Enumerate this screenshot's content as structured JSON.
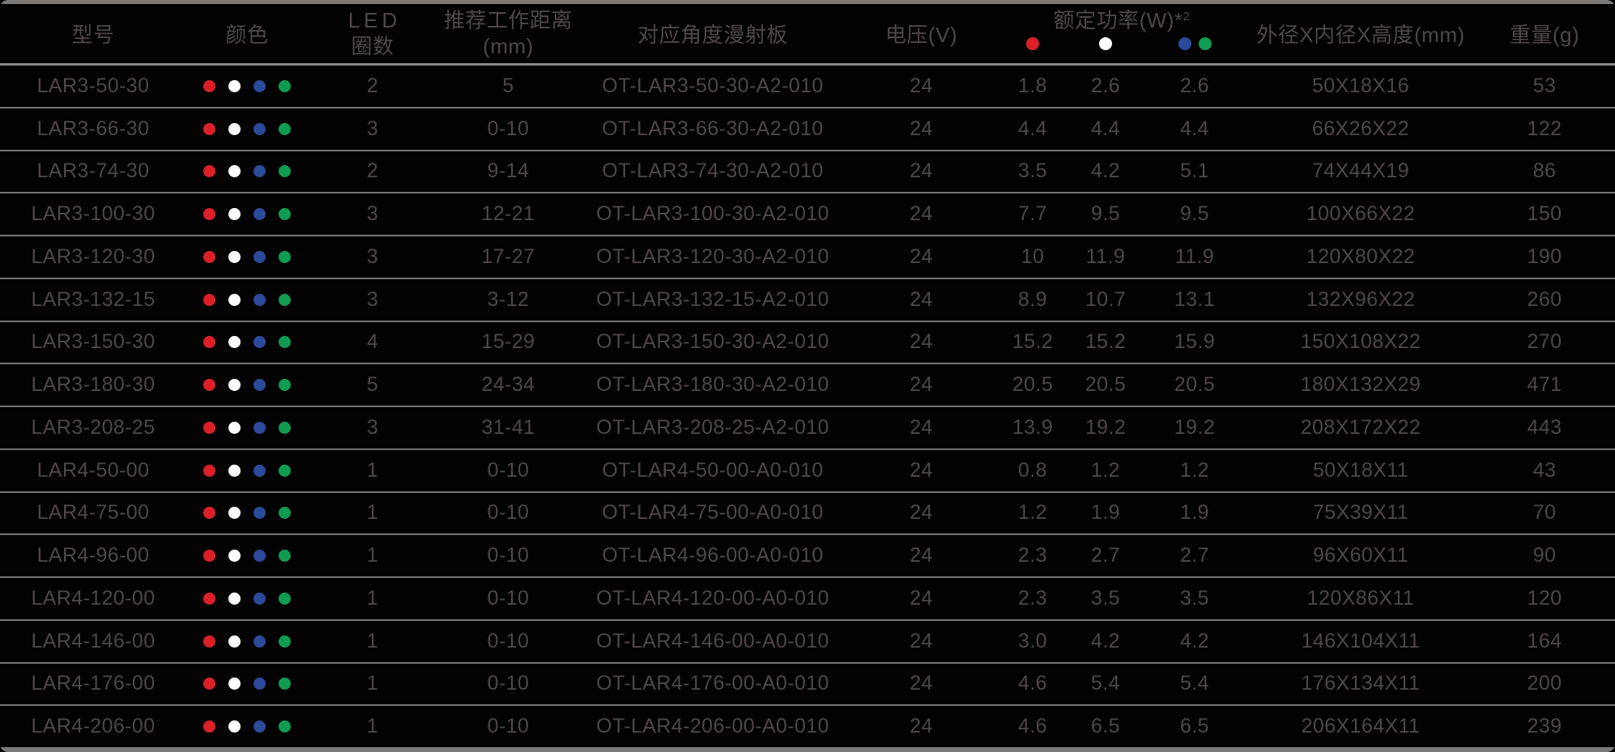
{
  "colors": {
    "background": "#020202",
    "text": "#4e4649",
    "separator_line": "#767272",
    "frame_bar": "#7a7777",
    "dots": {
      "red": "#dd2027",
      "white": "#ffffff",
      "blue": "#2a4a9a",
      "green": "#109b52"
    }
  },
  "table": {
    "headers": {
      "model": "型号",
      "color": "颜色",
      "led_line1": "LED",
      "led_line2": "圈数",
      "distance_line1": "推荐工作距离",
      "distance_line2": "(mm)",
      "diffuser": "对应角度漫射板",
      "voltage": "电压(V)",
      "power_title": "额定功率(W)*",
      "power_sup": "2",
      "power_dot_groups": [
        "red",
        "white",
        "blue+green"
      ],
      "dimensions": "外径X内径X高度(mm)",
      "weight": "重量(g)"
    },
    "row_dot_colors": [
      "red",
      "white",
      "blue",
      "green"
    ],
    "rows": [
      {
        "model": "LAR3-50-30",
        "led_rings": "2",
        "distance": "5",
        "diffuser": "OT-LAR3-50-30-A2-010",
        "voltage": "24",
        "power_red": "1.8",
        "power_white": "2.6",
        "power_bluegreen": "2.6",
        "dimensions": "50X18X16",
        "weight": "53"
      },
      {
        "model": "LAR3-66-30",
        "led_rings": "3",
        "distance": "0-10",
        "diffuser": "OT-LAR3-66-30-A2-010",
        "voltage": "24",
        "power_red": "4.4",
        "power_white": "4.4",
        "power_bluegreen": "4.4",
        "dimensions": "66X26X22",
        "weight": "122"
      },
      {
        "model": "LAR3-74-30",
        "led_rings": "2",
        "distance": "9-14",
        "diffuser": "OT-LAR3-74-30-A2-010",
        "voltage": "24",
        "power_red": "3.5",
        "power_white": "4.2",
        "power_bluegreen": "5.1",
        "dimensions": "74X44X19",
        "weight": "86"
      },
      {
        "model": "LAR3-100-30",
        "led_rings": "3",
        "distance": "12-21",
        "diffuser": "OT-LAR3-100-30-A2-010",
        "voltage": "24",
        "power_red": "7.7",
        "power_white": "9.5",
        "power_bluegreen": "9.5",
        "dimensions": "100X66X22",
        "weight": "150"
      },
      {
        "model": "LAR3-120-30",
        "led_rings": "3",
        "distance": "17-27",
        "diffuser": "OT-LAR3-120-30-A2-010",
        "voltage": "24",
        "power_red": "10",
        "power_white": "11.9",
        "power_bluegreen": "11.9",
        "dimensions": "120X80X22",
        "weight": "190"
      },
      {
        "model": "LAR3-132-15",
        "led_rings": "3",
        "distance": "3-12",
        "diffuser": "OT-LAR3-132-15-A2-010",
        "voltage": "24",
        "power_red": "8.9",
        "power_white": "10.7",
        "power_bluegreen": "13.1",
        "dimensions": "132X96X22",
        "weight": "260"
      },
      {
        "model": "LAR3-150-30",
        "led_rings": "4",
        "distance": "15-29",
        "diffuser": "OT-LAR3-150-30-A2-010",
        "voltage": "24",
        "power_red": "15.2",
        "power_white": "15.2",
        "power_bluegreen": "15.9",
        "dimensions": "150X108X22",
        "weight": "270"
      },
      {
        "model": "LAR3-180-30",
        "led_rings": "5",
        "distance": "24-34",
        "diffuser": "OT-LAR3-180-30-A2-010",
        "voltage": "24",
        "power_red": "20.5",
        "power_white": "20.5",
        "power_bluegreen": "20.5",
        "dimensions": "180X132X29",
        "weight": "471"
      },
      {
        "model": "LAR3-208-25",
        "led_rings": "3",
        "distance": "31-41",
        "diffuser": "OT-LAR3-208-25-A2-010",
        "voltage": "24",
        "power_red": "13.9",
        "power_white": "19.2",
        "power_bluegreen": "19.2",
        "dimensions": "208X172X22",
        "weight": "443"
      },
      {
        "model": "LAR4-50-00",
        "led_rings": "1",
        "distance": "0-10",
        "diffuser": "OT-LAR4-50-00-A0-010",
        "voltage": "24",
        "power_red": "0.8",
        "power_white": "1.2",
        "power_bluegreen": "1.2",
        "dimensions": "50X18X11",
        "weight": "43"
      },
      {
        "model": "LAR4-75-00",
        "led_rings": "1",
        "distance": "0-10",
        "diffuser": "OT-LAR4-75-00-A0-010",
        "voltage": "24",
        "power_red": "1.2",
        "power_white": "1.9",
        "power_bluegreen": "1.9",
        "dimensions": "75X39X11",
        "weight": "70"
      },
      {
        "model": "LAR4-96-00",
        "led_rings": "1",
        "distance": "0-10",
        "diffuser": "OT-LAR4-96-00-A0-010",
        "voltage": "24",
        "power_red": "2.3",
        "power_white": "2.7",
        "power_bluegreen": "2.7",
        "dimensions": "96X60X11",
        "weight": "90"
      },
      {
        "model": "LAR4-120-00",
        "led_rings": "1",
        "distance": "0-10",
        "diffuser": "OT-LAR4-120-00-A0-010",
        "voltage": "24",
        "power_red": "2.3",
        "power_white": "3.5",
        "power_bluegreen": "3.5",
        "dimensions": "120X86X11",
        "weight": "120"
      },
      {
        "model": "LAR4-146-00",
        "led_rings": "1",
        "distance": "0-10",
        "diffuser": "OT-LAR4-146-00-A0-010",
        "voltage": "24",
        "power_red": "3.0",
        "power_white": "4.2",
        "power_bluegreen": "4.2",
        "dimensions": "146X104X11",
        "weight": "164"
      },
      {
        "model": "LAR4-176-00",
        "led_rings": "1",
        "distance": "0-10",
        "diffuser": "OT-LAR4-176-00-A0-010",
        "voltage": "24",
        "power_red": "4.6",
        "power_white": "5.4",
        "power_bluegreen": "5.4",
        "dimensions": "176X134X11",
        "weight": "200"
      },
      {
        "model": "LAR4-206-00",
        "led_rings": "1",
        "distance": "0-10",
        "diffuser": "OT-LAR4-206-00-A0-010",
        "voltage": "24",
        "power_red": "4.6",
        "power_white": "6.5",
        "power_bluegreen": "6.5",
        "dimensions": "206X164X11",
        "weight": "239"
      }
    ]
  }
}
